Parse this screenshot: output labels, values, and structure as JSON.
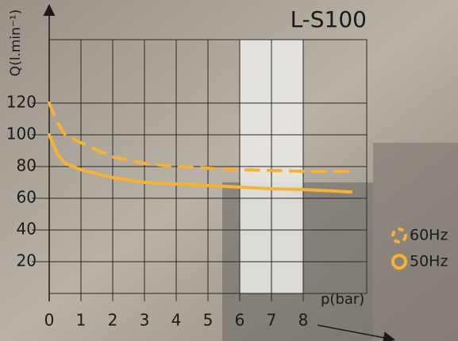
{
  "chart_data": {
    "type": "line",
    "title": "L-S100",
    "x_label": "p(bar)",
    "y_label": "Q(l.min⁻¹)",
    "x": [
      0,
      0.25,
      0.5,
      1,
      2,
      3,
      4,
      5,
      6,
      7,
      8,
      9.5
    ],
    "series": [
      {
        "name": "60Hz",
        "color": "#f5b335",
        "dashed": true,
        "values": [
          120,
          108,
          100,
          95,
          86,
          82,
          80,
          79,
          78,
          77.5,
          77,
          77
        ]
      },
      {
        "name": "50Hz",
        "color": "#f5b335",
        "dashed": false,
        "values": [
          100,
          88,
          82,
          78,
          73,
          70,
          69,
          68,
          67,
          66,
          65.5,
          64
        ]
      }
    ],
    "xlim": [
      0,
      10
    ],
    "xticks": [
      0,
      1,
      2,
      3,
      4,
      5,
      6,
      7,
      8
    ],
    "ylim": [
      0,
      160
    ],
    "yticks": [
      20,
      40,
      60,
      80,
      100,
      120
    ],
    "grid": true,
    "legend": "right"
  }
}
